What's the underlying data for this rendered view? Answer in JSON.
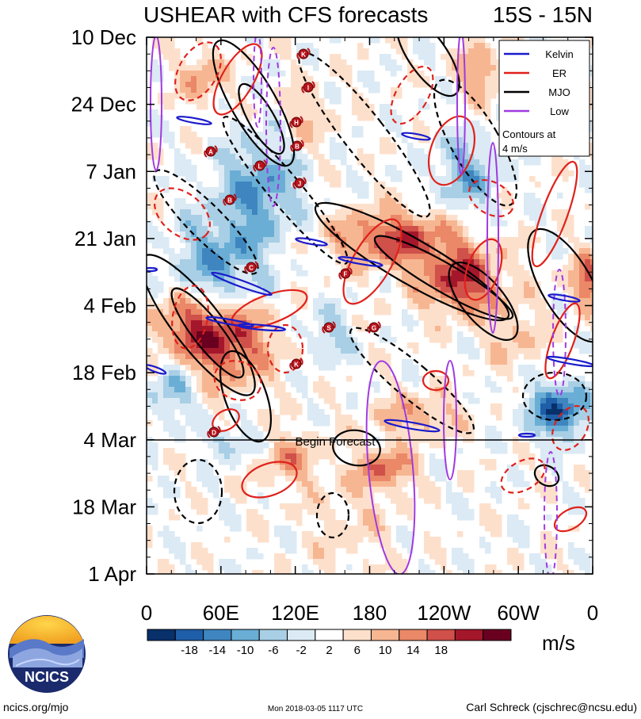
{
  "chart_data": {
    "type": "heatmap",
    "title": "USHEAR with CFS forecasts",
    "region": "15S - 15N",
    "y_ticks": [
      "10 Dec",
      "24 Dec",
      "7 Jan",
      "21 Jan",
      "4 Feb",
      "18 Feb",
      "4 Mar",
      "18 Mar",
      "1 Apr"
    ],
    "x_ticks": [
      "0",
      "60E",
      "120E",
      "180",
      "120W",
      "60W",
      "0"
    ],
    "x_range_deg": [
      0,
      360
    ],
    "forecast_start": "4 Mar",
    "forecast_label": "Begin Forecast",
    "legend": {
      "entries": [
        {
          "name": "Kelvin",
          "color": "#1a1acc"
        },
        {
          "name": "ER",
          "color": "#e0211b"
        },
        {
          "name": "MJO",
          "color": "#000000"
        },
        {
          "name": "Low",
          "color": "#a03ae0"
        }
      ],
      "note_line1": "Contours at",
      "note_line2": "4 m/s"
    },
    "colorbar": {
      "labels": [
        "-18",
        "-14",
        "-10",
        "-6",
        "-2",
        "2",
        "6",
        "10",
        "14",
        "18"
      ],
      "colors": [
        "#08306b",
        "#1f5ea8",
        "#3f86c0",
        "#6aaed6",
        "#a8cfe5",
        "#dbeaf4",
        "#ffffff",
        "#fde0cc",
        "#f7b692",
        "#ea8868",
        "#d0504a",
        "#a4172b",
        "#6a0020"
      ],
      "units": "m/s"
    },
    "storm_markers": [
      "K",
      "I",
      "H",
      "B",
      "L",
      "J",
      "A",
      "B",
      "C",
      "F",
      "S",
      "G",
      "K",
      "D"
    ],
    "series": [
      {
        "name": "Kelvin",
        "color": "#1a1acc"
      },
      {
        "name": "ER",
        "color": "#e0211b"
      },
      {
        "name": "MJO",
        "color": "#000000"
      },
      {
        "name": "Low",
        "color": "#a03ae0"
      }
    ]
  },
  "footer": {
    "logo_text": "NCICS",
    "url": "ncics.org/mjo",
    "timestamp": "Mon 2018-03-05 1117 UTC",
    "author": "Carl Schreck (cjschrec@ncsu.edu)"
  }
}
